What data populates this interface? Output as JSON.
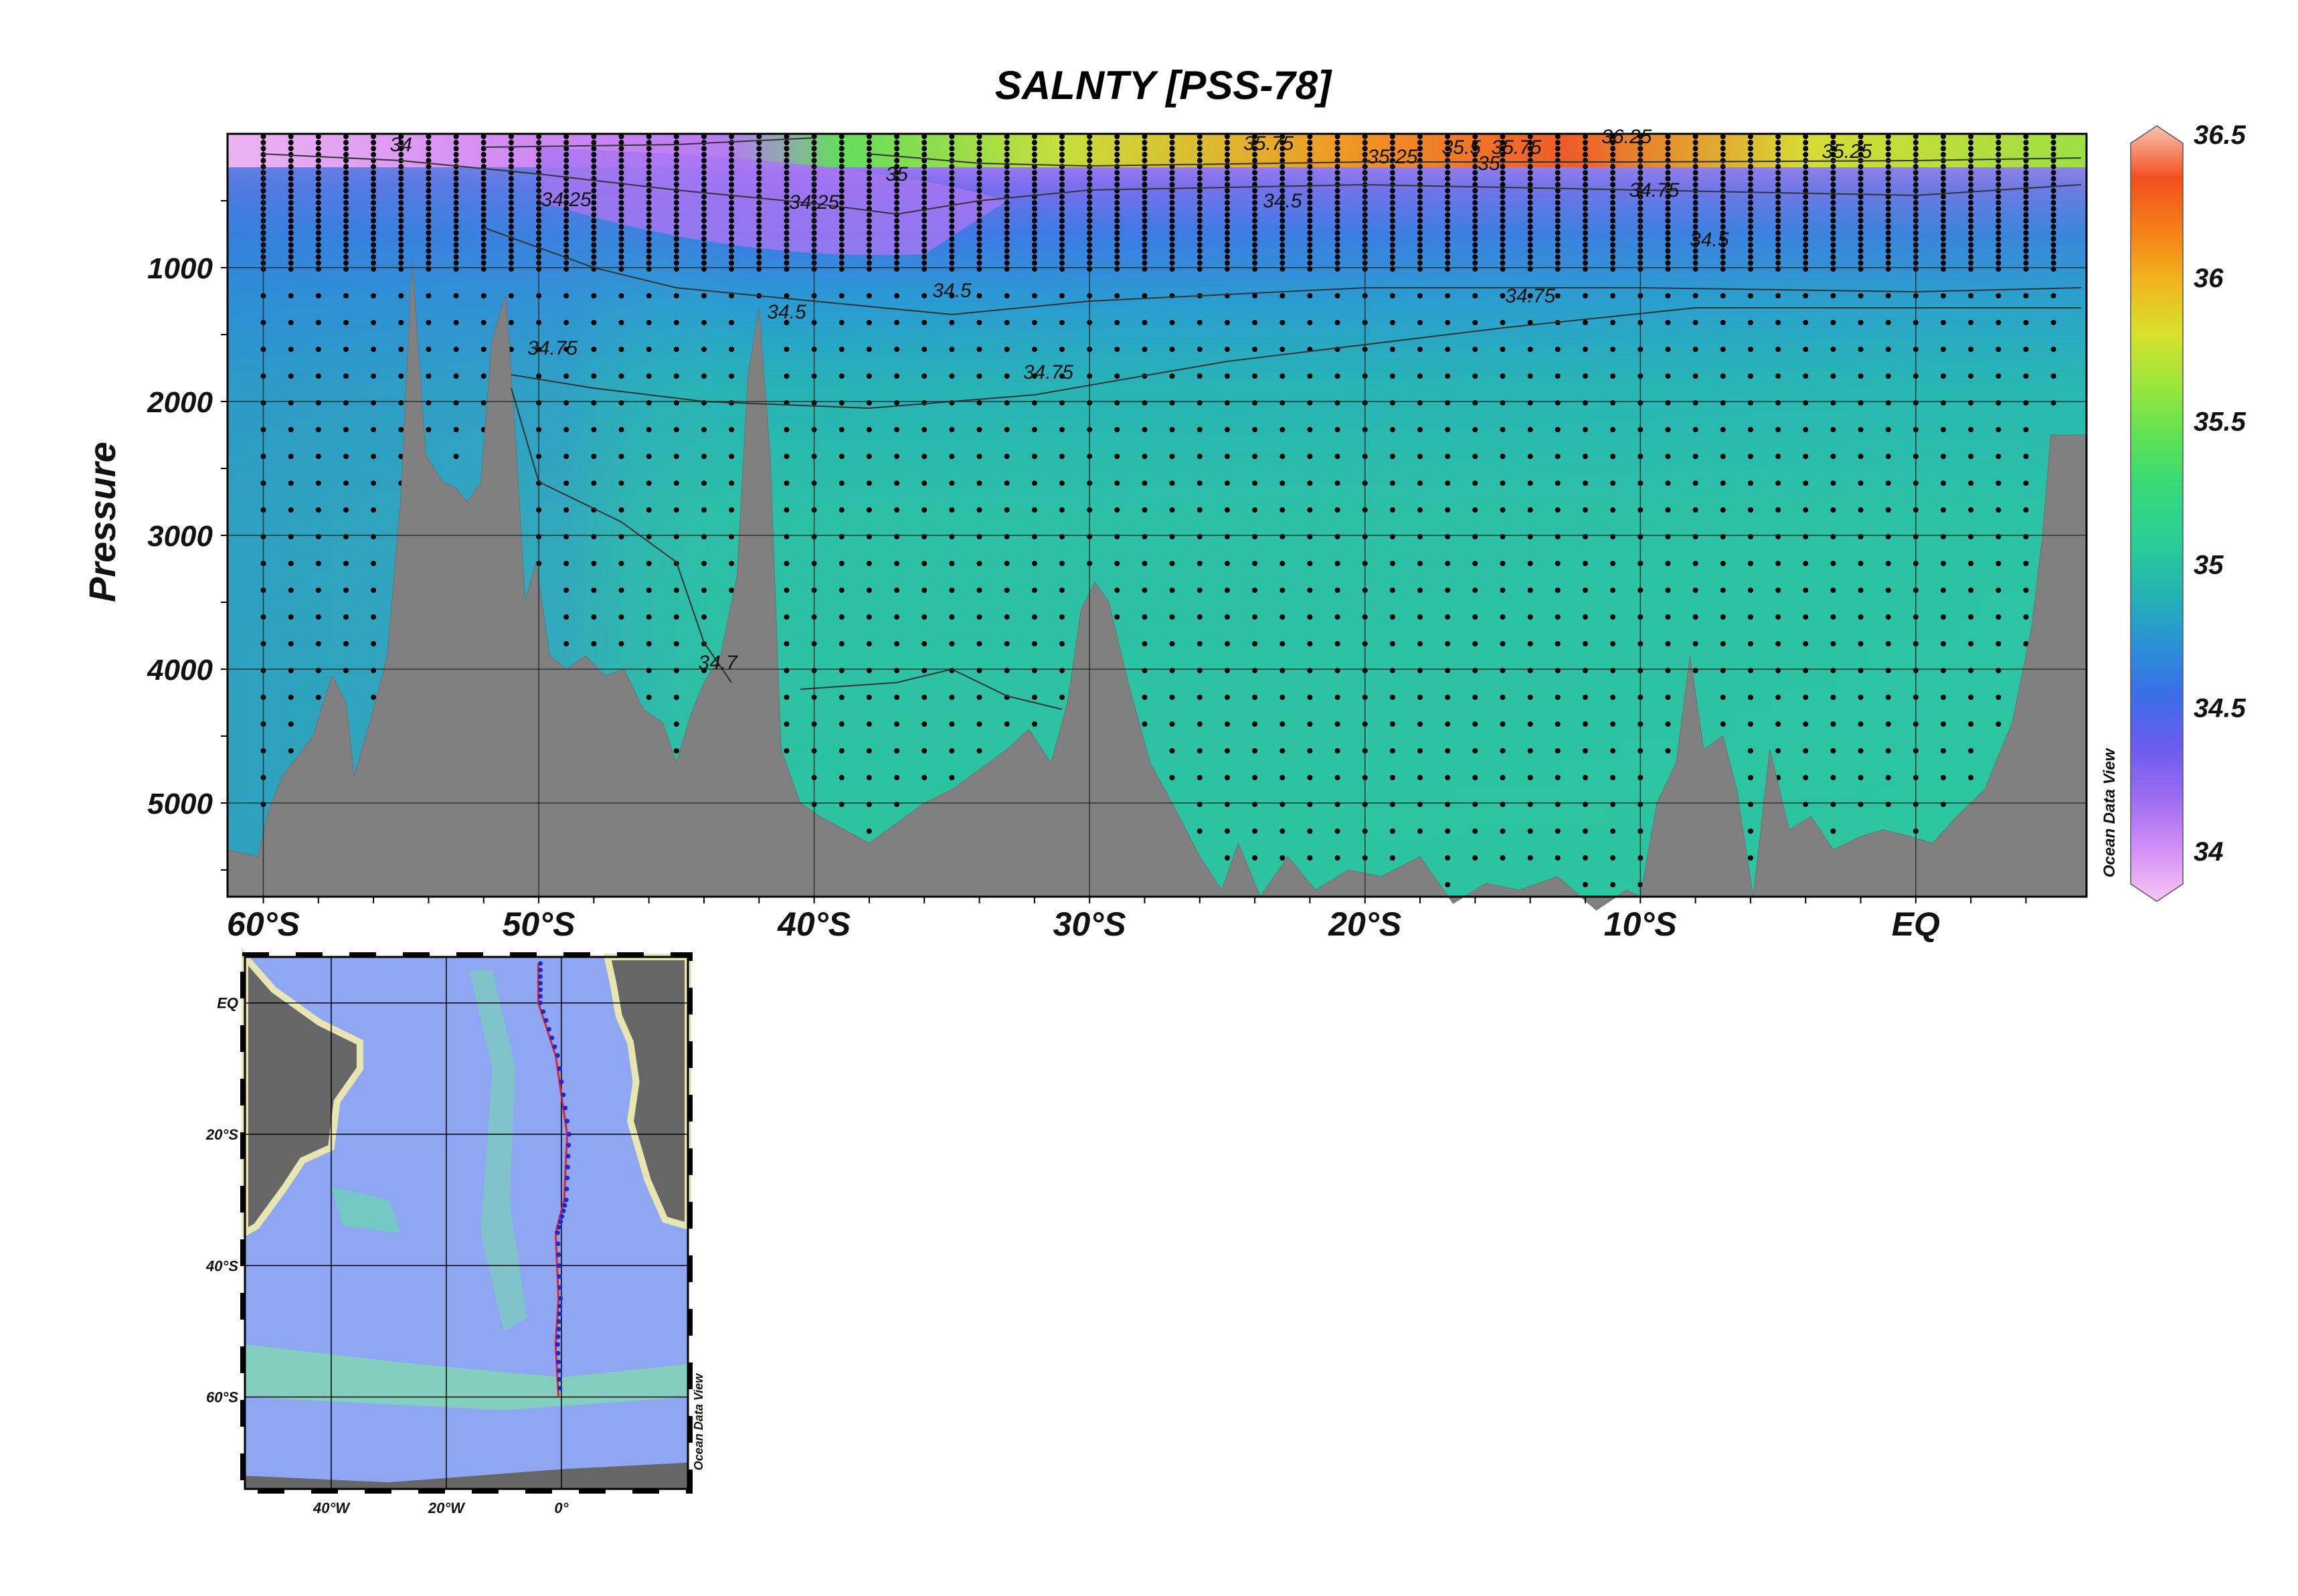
{
  "chart_data": [
    {
      "type": "heatmap",
      "title": "SALNTY [PSS-78]",
      "ylabel": "Pressure",
      "xlabel": "",
      "x_ticks": [
        "60°S",
        "50°S",
        "40°S",
        "30°S",
        "20°S",
        "10°S",
        "EQ"
      ],
      "x_tick_lat": [
        -60,
        -50,
        -40,
        -30,
        -20,
        -10,
        0
      ],
      "xlim_lat": [
        -61.3,
        6.2
      ],
      "y_ticks": [
        "1000",
        "2000",
        "3000",
        "4000",
        "5000"
      ],
      "y_tick_values": [
        1000,
        2000,
        3000,
        4000,
        5000
      ],
      "ylim": [
        0,
        5700
      ],
      "y_reversed": true,
      "grid": true,
      "colorbar": {
        "min": 33.85,
        "max": 36.5,
        "ticks": [
          "34",
          "34.5",
          "35",
          "35.5",
          "36",
          "36.5"
        ],
        "tick_values": [
          34,
          34.5,
          35,
          35.5,
          36,
          36.5
        ],
        "colors": [
          "#f9c6f4",
          "#d38ff6",
          "#9d6cf1",
          "#6a5cee",
          "#3b6ee8",
          "#2a92d6",
          "#24b4b0",
          "#2bcf96",
          "#36d97a",
          "#5fe255",
          "#9ce63c",
          "#d7e12c",
          "#f2b51f",
          "#f57e17",
          "#f24f1e",
          "#f7c4b0"
        ],
        "label": "Ocean Data View"
      },
      "contour_labels": [
        "34",
        "34.25",
        "34.25",
        "34.5",
        "34.5",
        "34.5",
        "34.5",
        "34.75",
        "34.75",
        "34.75",
        "34.75",
        "34.7",
        "35",
        "35",
        "35.25",
        "35.25",
        "35.5",
        "35.75",
        "35.75",
        "36.25"
      ],
      "bathymetry": [
        [
          -61.3,
          5350
        ],
        [
          -60.2,
          5400
        ],
        [
          -59.8,
          5050
        ],
        [
          -59.3,
          4800
        ],
        [
          -58.2,
          4500
        ],
        [
          -57.5,
          4050
        ],
        [
          -57.0,
          4250
        ],
        [
          -56.7,
          4800
        ],
        [
          -56.0,
          4300
        ],
        [
          -55.5,
          3900
        ],
        [
          -55.0,
          2700
        ],
        [
          -54.6,
          950
        ],
        [
          -54.1,
          2400
        ],
        [
          -53.5,
          2600
        ],
        [
          -53.0,
          2650
        ],
        [
          -52.6,
          2750
        ],
        [
          -52.1,
          2600
        ],
        [
          -51.7,
          1550
        ],
        [
          -51.2,
          1200
        ],
        [
          -50.8,
          2400
        ],
        [
          -50.5,
          3500
        ],
        [
          -50.1,
          3200
        ],
        [
          -49.6,
          3900
        ],
        [
          -49.0,
          4000
        ],
        [
          -48.3,
          3900
        ],
        [
          -47.6,
          4050
        ],
        [
          -46.9,
          4000
        ],
        [
          -46.2,
          4300
        ],
        [
          -45.5,
          4400
        ],
        [
          -45.0,
          4700
        ],
        [
          -44.5,
          4350
        ],
        [
          -44.0,
          4100
        ],
        [
          -43.4,
          3900
        ],
        [
          -42.8,
          3300
        ],
        [
          -42.4,
          1800
        ],
        [
          -42.0,
          1300
        ],
        [
          -41.6,
          2400
        ],
        [
          -41.2,
          4600
        ],
        [
          -40.5,
          5000
        ],
        [
          -39.8,
          5100
        ],
        [
          -38.9,
          5200
        ],
        [
          -38.0,
          5300
        ],
        [
          -37.0,
          5150
        ],
        [
          -36.0,
          5000
        ],
        [
          -35.0,
          4900
        ],
        [
          -34.0,
          4750
        ],
        [
          -33.0,
          4600
        ],
        [
          -32.2,
          4450
        ],
        [
          -31.4,
          4700
        ],
        [
          -30.8,
          4250
        ],
        [
          -30.3,
          3550
        ],
        [
          -29.8,
          3350
        ],
        [
          -29.3,
          3500
        ],
        [
          -28.6,
          4100
        ],
        [
          -27.8,
          4700
        ],
        [
          -27.0,
          5000
        ],
        [
          -26.0,
          5400
        ],
        [
          -25.2,
          5650
        ],
        [
          -24.6,
          5300
        ],
        [
          -23.8,
          5700
        ],
        [
          -22.8,
          5400
        ],
        [
          -21.8,
          5650
        ],
        [
          -20.6,
          5500
        ],
        [
          -19.4,
          5550
        ],
        [
          -18.0,
          5400
        ],
        [
          -16.8,
          5750
        ],
        [
          -15.6,
          5600
        ],
        [
          -14.4,
          5650
        ],
        [
          -13.0,
          5550
        ],
        [
          -11.6,
          5800
        ],
        [
          -10.5,
          5650
        ],
        [
          -10.0,
          5700
        ],
        [
          -9.4,
          5000
        ],
        [
          -8.7,
          4700
        ],
        [
          -8.2,
          3900
        ],
        [
          -7.7,
          4600
        ],
        [
          -7.0,
          4500
        ],
        [
          -6.5,
          4900
        ],
        [
          -5.9,
          5700
        ],
        [
          -5.3,
          4600
        ],
        [
          -4.6,
          5200
        ],
        [
          -3.8,
          5100
        ],
        [
          -3.0,
          5350
        ],
        [
          -2.0,
          5250
        ],
        [
          -1.2,
          5200
        ],
        [
          -0.2,
          5250
        ],
        [
          0.6,
          5300
        ],
        [
          1.5,
          5100
        ],
        [
          2.5,
          4900
        ],
        [
          3.5,
          4400
        ],
        [
          4.2,
          3700
        ],
        [
          4.6,
          3000
        ],
        [
          4.9,
          2250
        ],
        [
          6.2,
          2250
        ]
      ],
      "map_axes": {
        "lat_ticks": [
          "EQ",
          "20°S",
          "40°S",
          "60°S"
        ],
        "lon_ticks": [
          "40°W",
          "20°W",
          "0°"
        ],
        "label": "Ocean Data View"
      }
    }
  ]
}
